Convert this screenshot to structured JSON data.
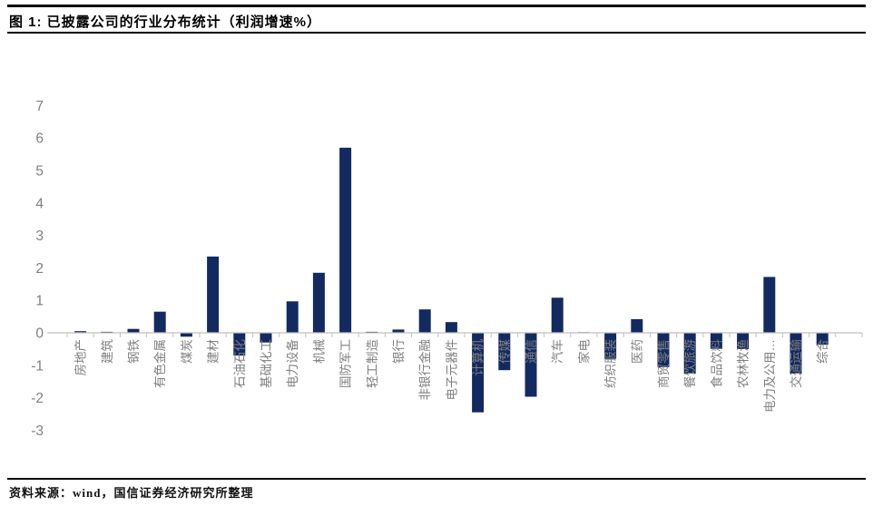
{
  "header": {
    "title": "图 1: 已披露公司的行业分布统计（利润增速%）"
  },
  "footer": {
    "source": "资料来源：wind，国信证券经济研究所整理"
  },
  "chart_data": {
    "type": "bar",
    "title": "已披露公司的行业分布统计（利润增速%）",
    "xlabel": "",
    "ylabel": "",
    "categories": [
      "房地产",
      "建筑",
      "钢铁",
      "有色金属",
      "煤炭",
      "建材",
      "石油石化",
      "基础化工",
      "电力设备",
      "机械",
      "国防军工",
      "轻工制造",
      "银行",
      "非银行金融",
      "电子元器件",
      "计算机",
      "传媒",
      "通信",
      "汽车",
      "家电",
      "纺织服装",
      "医药",
      "商贸零售",
      "餐饮旅游",
      "食品饮料",
      "农林牧渔",
      "电力及公用…",
      "交通运输",
      "综合"
    ],
    "values": [
      0.05,
      0.03,
      0.12,
      0.65,
      -0.12,
      2.35,
      -0.7,
      -0.3,
      0.97,
      1.85,
      5.7,
      0.03,
      0.1,
      0.72,
      0.33,
      -2.45,
      -1.15,
      -1.97,
      1.08,
      0.02,
      -0.8,
      0.42,
      -1.06,
      -1.26,
      -0.5,
      -0.5,
      1.72,
      -1.26,
      -0.37
    ],
    "ylim": [
      -3,
      7
    ],
    "yticks": [
      7,
      6,
      5,
      4,
      3,
      2,
      1,
      0,
      -1,
      -2,
      -3
    ],
    "grid": false,
    "legend": "none",
    "bar_color": "#132a61",
    "label_color": "#7f7f7f",
    "axis_color": "#c0c0c0"
  }
}
